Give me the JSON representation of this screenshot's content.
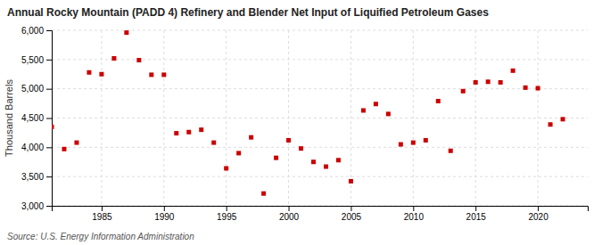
{
  "chart_data": {
    "type": "scatter",
    "title": "Annual Rocky Mountain (PADD 4) Refinery and Blender Net Input of Liquified Petroleum Gases",
    "ylabel": "Thousand Barrels",
    "source": "Source: U.S. Energy Information Administration",
    "color": "#cc0000",
    "marker": "square",
    "grid": true,
    "xlim": [
      1981,
      2024
    ],
    "ylim": [
      3000,
      6000
    ],
    "xticks": [
      1985,
      1990,
      1995,
      2000,
      2005,
      2010,
      2015,
      2020
    ],
    "yticks": [
      {
        "value": 3000,
        "label": "3,000"
      },
      {
        "value": 3500,
        "label": "3,500"
      },
      {
        "value": 4000,
        "label": "4,000"
      },
      {
        "value": 4500,
        "label": "4,500"
      },
      {
        "value": 5000,
        "label": "5,000"
      },
      {
        "value": 5500,
        "label": "5,500"
      },
      {
        "value": 6000,
        "label": "6,000"
      }
    ],
    "x": [
      1981,
      1982,
      1983,
      1984,
      1985,
      1986,
      1987,
      1988,
      1989,
      1990,
      1991,
      1992,
      1993,
      1994,
      1995,
      1996,
      1997,
      1998,
      1999,
      2000,
      2001,
      2002,
      2003,
      2004,
      2005,
      2006,
      2007,
      2008,
      2009,
      2010,
      2011,
      2012,
      2013,
      2014,
      2015,
      2016,
      2017,
      2018,
      2019,
      2020,
      2021,
      2022
    ],
    "values": [
      4350,
      3970,
      4080,
      5280,
      5250,
      5520,
      5960,
      5490,
      5240,
      5240,
      4240,
      4260,
      4300,
      4080,
      3640,
      3900,
      4170,
      3210,
      3820,
      4120,
      3980,
      3750,
      3670,
      3780,
      3420,
      4630,
      4740,
      4570,
      4050,
      4080,
      4120,
      4790,
      3940,
      4960,
      5110,
      5120,
      5110,
      5310,
      5020,
      5010,
      4390,
      4480
    ]
  }
}
